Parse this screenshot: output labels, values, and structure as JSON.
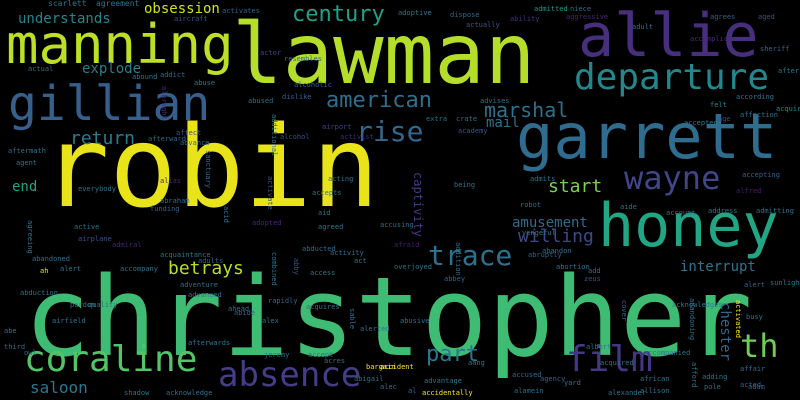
{
  "words": [
    {
      "text": "robin",
      "color": "#e8e419"
    },
    {
      "text": "christopher",
      "color": "#3fbc73"
    },
    {
      "text": "lawman",
      "color": "#b5de2b"
    },
    {
      "text": "garrett",
      "color": "#2f6c8e"
    },
    {
      "text": "manning",
      "color": "#bddf26"
    },
    {
      "text": "allie",
      "color": "#472f7d"
    },
    {
      "text": "honey",
      "color": "#21a585"
    },
    {
      "text": "gillian",
      "color": "#35608d"
    },
    {
      "text": "departure",
      "color": "#23888e"
    },
    {
      "text": "coraline",
      "color": "#52c569"
    },
    {
      "text": "absence",
      "color": "#433e85"
    },
    {
      "text": "film",
      "color": "#453781"
    },
    {
      "text": "wayne",
      "color": "#404688"
    },
    {
      "text": "th",
      "color": "#6ece58"
    },
    {
      "text": "trace",
      "color": "#2c728e"
    },
    {
      "text": "american",
      "color": "#2d708e"
    },
    {
      "text": "rise",
      "color": "#31688e"
    },
    {
      "text": "century",
      "color": "#1fa287"
    },
    {
      "text": "part",
      "color": "#2a788e"
    },
    {
      "text": "marshal",
      "color": "#2d718e"
    },
    {
      "text": "return",
      "color": "#287d8e"
    },
    {
      "text": "betrays",
      "color": "#b8de29"
    },
    {
      "text": "start",
      "color": "#7ad151"
    },
    {
      "text": "willing",
      "color": "#3e4989"
    },
    {
      "text": "amusement",
      "color": "#306a8e"
    },
    {
      "text": "interrupt",
      "color": "#2a768e"
    },
    {
      "text": "saloon",
      "color": "#2a788e"
    },
    {
      "text": "obsession",
      "color": "#d2e21b"
    },
    {
      "text": "understands",
      "color": "#25858e"
    },
    {
      "text": "explode",
      "color": "#27808e"
    },
    {
      "text": "mail",
      "color": "#2c728e"
    },
    {
      "text": "chester",
      "color": "#30698e"
    },
    {
      "text": "end",
      "color": "#20a486"
    },
    {
      "text": "captivity",
      "color": "#443983"
    },
    {
      "text": "scarlett",
      "color": "#2a788e"
    },
    {
      "text": "agreement",
      "color": "#2c738e"
    },
    {
      "text": "aircraft",
      "color": "#3b528b"
    },
    {
      "text": "activates",
      "color": "#33638d"
    },
    {
      "text": "adoptive",
      "color": "#2a768e"
    },
    {
      "text": "dispose",
      "color": "#31688e"
    },
    {
      "text": "admitted",
      "color": "#1f9a8a"
    },
    {
      "text": "niece",
      "color": "#2c728e"
    },
    {
      "text": "agrees",
      "color": "#33638d"
    },
    {
      "text": "aged",
      "color": "#3b528b"
    },
    {
      "text": "ability",
      "color": "#46327e"
    },
    {
      "text": "aggressive",
      "color": "#482677"
    },
    {
      "text": "adult",
      "color": "#2d718e"
    },
    {
      "text": "accomplice",
      "color": "#472c7a"
    },
    {
      "text": "actual",
      "color": "#2e6e8e"
    },
    {
      "text": "abused",
      "color": "#2c728e"
    },
    {
      "text": "alcoholic",
      "color": "#31688e"
    },
    {
      "text": "actually",
      "color": "#38588c"
    },
    {
      "text": "resembles",
      "color": "#2e6f8e"
    },
    {
      "text": "actor",
      "color": "#3e4989"
    },
    {
      "text": "abound",
      "color": "#2a788e"
    },
    {
      "text": "addict",
      "color": "#2e6e8e"
    },
    {
      "text": "abuse",
      "color": "#287d8e"
    },
    {
      "text": "albright",
      "color": "#472d7b"
    },
    {
      "text": "dislike",
      "color": "#33628d"
    },
    {
      "text": "advises",
      "color": "#2c738e"
    },
    {
      "text": "felt",
      "color": "#25838e"
    },
    {
      "text": "according",
      "color": "#2a768e"
    },
    {
      "text": "acquire",
      "color": "#23898e"
    },
    {
      "text": "affection",
      "color": "#2c738e"
    },
    {
      "text": "afterlife",
      "color": "#2a768e"
    },
    {
      "text": "sheriff",
      "color": "#31688e"
    },
    {
      "text": "age",
      "color": "#3e4989"
    },
    {
      "text": "accepted",
      "color": "#287c8e"
    },
    {
      "text": "extra",
      "color": "#2d708e"
    },
    {
      "text": "crate",
      "color": "#2e6e8e"
    },
    {
      "text": "academy",
      "color": "#39568c"
    },
    {
      "text": "airport",
      "color": "#414487"
    },
    {
      "text": "affect",
      "color": "#3a548c"
    },
    {
      "text": "advance",
      "color": "#2d708e"
    },
    {
      "text": "afterward",
      "color": "#33638d"
    },
    {
      "text": "additional",
      "color": "#2a778e"
    },
    {
      "text": "alcohol",
      "color": "#3b528b"
    },
    {
      "text": "activist",
      "color": "#472a7a"
    },
    {
      "text": "aftermath",
      "color": "#2d718e"
    },
    {
      "text": "agent",
      "color": "#2a788e"
    },
    {
      "text": "sanctuary",
      "color": "#2e6e8e"
    },
    {
      "text": "alias",
      "color": "#482475"
    },
    {
      "text": "abraham",
      "color": "#2e6f8e"
    },
    {
      "text": "acting",
      "color": "#2c738e"
    },
    {
      "text": "accepts",
      "color": "#2a778e"
    },
    {
      "text": "being",
      "color": "#2c738e"
    },
    {
      "text": "admits",
      "color": "#2a768e"
    },
    {
      "text": "aide",
      "color": "#2c728e"
    },
    {
      "text": "alfred",
      "color": "#481c6e"
    },
    {
      "text": "accepting",
      "color": "#33638d"
    },
    {
      "text": "address",
      "color": "#2a788e"
    },
    {
      "text": "admitting",
      "color": "#2e6e8e"
    },
    {
      "text": "account",
      "color": "#2d718e"
    },
    {
      "text": "everybody",
      "color": "#2c738e"
    },
    {
      "text": "active",
      "color": "#2a768e"
    },
    {
      "text": "airplane",
      "color": "#3b528b"
    },
    {
      "text": "funding",
      "color": "#33638d"
    },
    {
      "text": "acid",
      "color": "#2c738e"
    },
    {
      "text": "activate",
      "color": "#3a548c"
    },
    {
      "text": "adopted",
      "color": "#482475"
    },
    {
      "text": "aid",
      "color": "#2c728e"
    },
    {
      "text": "agreed",
      "color": "#2a788e"
    },
    {
      "text": "accusing",
      "color": "#2e6e8e"
    },
    {
      "text": "robot",
      "color": "#2d708e"
    },
    {
      "text": "vengeful",
      "color": "#2a778e"
    },
    {
      "text": "abandon",
      "color": "#2d718e"
    },
    {
      "text": "abortion",
      "color": "#2a768e"
    },
    {
      "text": "abruptly",
      "color": "#33638d"
    },
    {
      "text": "add",
      "color": "#2c738e"
    },
    {
      "text": "zeus",
      "color": "#3b528b"
    },
    {
      "text": "addition",
      "color": "#2e6e8e"
    },
    {
      "text": "afraid",
      "color": "#481c6e"
    },
    {
      "text": "admiral",
      "color": "#482475"
    },
    {
      "text": "acquaintance",
      "color": "#2a788e"
    },
    {
      "text": "agreeing",
      "color": "#2d718e"
    },
    {
      "text": "adults",
      "color": "#33638d"
    },
    {
      "text": "combined",
      "color": "#2c738e"
    },
    {
      "text": "abby",
      "color": "#3b528b"
    },
    {
      "text": "abducted",
      "color": "#2e6e8e"
    },
    {
      "text": "access",
      "color": "#2a778e"
    },
    {
      "text": "activity",
      "color": "#2d718e"
    },
    {
      "text": "act",
      "color": "#2c738e"
    },
    {
      "text": "overjoyed",
      "color": "#2a768e"
    },
    {
      "text": "abbey",
      "color": "#33638d"
    },
    {
      "text": "abandoned",
      "color": "#2d708e"
    },
    {
      "text": "ah",
      "color": "#e8e419"
    },
    {
      "text": "alert",
      "color": "#2a788e"
    },
    {
      "text": "accompany",
      "color": "#2d718e"
    },
    {
      "text": "adventure",
      "color": "#2c738e"
    },
    {
      "text": "advanced",
      "color": "#2a768e"
    },
    {
      "text": "abide",
      "color": "#33638d"
    },
    {
      "text": "abduction",
      "color": "#2e6e8e"
    },
    {
      "text": "pardon",
      "color": "#2a788e"
    },
    {
      "text": "quality",
      "color": "#2c738e"
    },
    {
      "text": "abe",
      "color": "#2d718e"
    },
    {
      "text": "airfield",
      "color": "#2a768e"
    },
    {
      "text": "third",
      "color": "#2e6e8e"
    },
    {
      "text": "rapidly",
      "color": "#33638d"
    },
    {
      "text": "ahead",
      "color": "#2c738e"
    },
    {
      "text": "alex",
      "color": "#2a788e"
    },
    {
      "text": "acquires",
      "color": "#2d718e"
    },
    {
      "text": "abusive",
      "color": "#2a768e"
    },
    {
      "text": "alerted",
      "color": "#2c738e"
    },
    {
      "text": "sable",
      "color": "#2e6e8e"
    },
    {
      "text": "cover",
      "color": "#33638d"
    },
    {
      "text": "acknowledges",
      "color": "#2a788e"
    },
    {
      "text": "abandoning",
      "color": "#2d718e"
    },
    {
      "text": "activated",
      "color": "#fde725"
    },
    {
      "text": "busy",
      "color": "#2c738e"
    },
    {
      "text": "sunlight",
      "color": "#2a768e"
    },
    {
      "text": "alert",
      "color": "#33638d"
    },
    {
      "text": "owl",
      "color": "#2e6e8e"
    },
    {
      "text": "afterwards",
      "color": "#2a788e"
    },
    {
      "text": "jeremy",
      "color": "#2d718e"
    },
    {
      "text": "accept",
      "color": "#2c738e"
    },
    {
      "text": "bargain",
      "color": "#fde725"
    },
    {
      "text": "aang",
      "color": "#2a768e"
    },
    {
      "text": "accused",
      "color": "#2e6e8e"
    },
    {
      "text": "agency",
      "color": "#33638d"
    },
    {
      "text": "yard",
      "color": "#2a788e"
    },
    {
      "text": "afford",
      "color": "#2d718e"
    },
    {
      "text": "african",
      "color": "#2c738e"
    },
    {
      "text": "accompanied",
      "color": "#2a768e"
    },
    {
      "text": "affair",
      "color": "#2e6e8e"
    },
    {
      "text": "acted",
      "color": "#33638d"
    },
    {
      "text": "adding",
      "color": "#2a788e"
    },
    {
      "text": "acres",
      "color": "#2d718e"
    },
    {
      "text": "accident",
      "color": "#fde725"
    },
    {
      "text": "abigail",
      "color": "#2c738e"
    },
    {
      "text": "alec",
      "color": "#2a768e"
    },
    {
      "text": "al",
      "color": "#2e6e8e"
    },
    {
      "text": "advantage",
      "color": "#2a788e"
    },
    {
      "text": "accidentally",
      "color": "#fde725"
    },
    {
      "text": "alamein",
      "color": "#2d718e"
    },
    {
      "text": "alexander",
      "color": "#2c738e"
    },
    {
      "text": "allison",
      "color": "#2a768e"
    },
    {
      "text": "pole",
      "color": "#2e6e8e"
    },
    {
      "text": "adam",
      "color": "#33638d"
    },
    {
      "text": "shadow",
      "color": "#2a788e"
    },
    {
      "text": "acknowledge",
      "color": "#2d718e"
    },
    {
      "text": "acquired",
      "color": "#2c738e"
    },
    {
      "text": "albert",
      "color": "#2a768e"
    },
    {
      "text": "aloud",
      "color": "#2e6e8e"
    },
    {
      "text": "affairs",
      "color": "#33638d"
    }
  ]
}
